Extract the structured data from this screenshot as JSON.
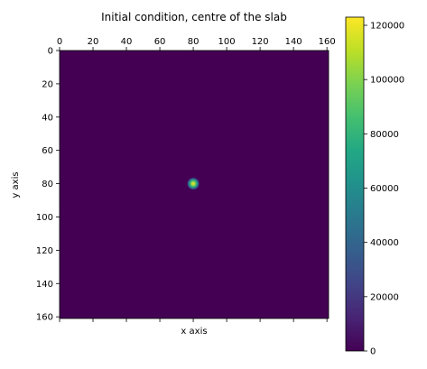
{
  "chart_data": [
    {
      "type": "heatmap",
      "title": "Initial condition, centre of the slab",
      "xlabel": "x axis",
      "ylabel": "y axis",
      "xlim": [
        0,
        161
      ],
      "ylim": [
        161,
        0
      ],
      "x_ticks": [
        0,
        20,
        40,
        60,
        80,
        100,
        120,
        140,
        160
      ],
      "y_ticks": [
        0,
        20,
        40,
        60,
        80,
        100,
        120,
        140,
        160
      ],
      "x_tick_labels": [
        "0",
        "20",
        "40",
        "60",
        "80",
        "100",
        "120",
        "140",
        "160"
      ],
      "y_tick_labels": [
        "0",
        "20",
        "40",
        "60",
        "80",
        "100",
        "120",
        "140",
        "160"
      ],
      "x_ticklabels_position": "top",
      "grid": false,
      "background_value": 0,
      "hotspot": {
        "x": 80,
        "y": 80,
        "value": 123000
      },
      "colorscale": "viridis",
      "colorbar": {
        "position": "right",
        "range": [
          0,
          123000
        ],
        "ticks": [
          0,
          20000,
          40000,
          60000,
          80000,
          100000,
          120000
        ],
        "tick_labels": [
          "0",
          "20000",
          "40000",
          "60000",
          "80000",
          "100000",
          "120000"
        ]
      }
    }
  ]
}
